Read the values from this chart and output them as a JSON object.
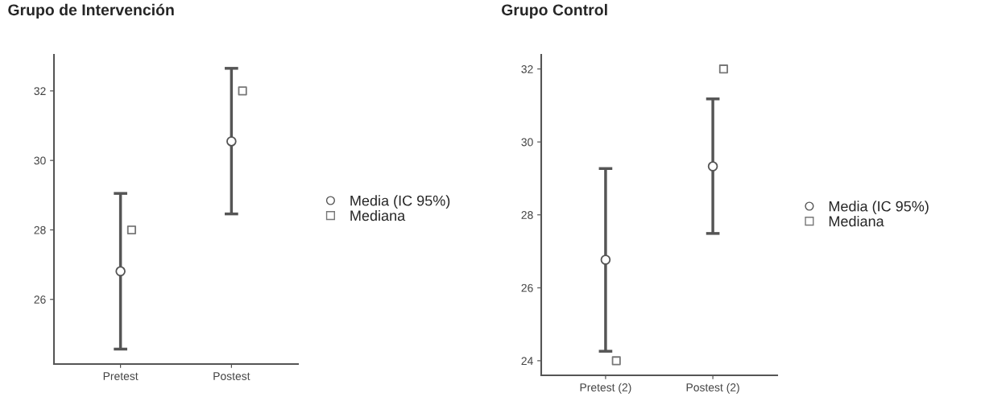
{
  "chart_data": [
    {
      "type": "scatter",
      "title": "Grupo de Intervención",
      "categories": [
        "Pretest",
        "Postest"
      ],
      "ylim": [
        24.14,
        33.04
      ],
      "yticks": [
        26,
        28,
        30,
        32
      ],
      "legend": "right",
      "grid": false,
      "series": [
        {
          "name": "Media (IC 95%)",
          "color": "#555555",
          "marker": "circle",
          "values": [
            26.81,
            30.55
          ],
          "errors": [
            [
              24.57,
              29.05
            ],
            [
              28.46,
              32.65
            ]
          ]
        },
        {
          "name": "Mediana",
          "color": "#777777",
          "marker": "square",
          "values": [
            28,
            32
          ]
        }
      ]
    },
    {
      "type": "scatter",
      "title": "Grupo Control",
      "categories": [
        "Pretest (2)",
        "Postest (2)"
      ],
      "ylim": [
        23.6,
        32.39
      ],
      "yticks": [
        24,
        26,
        28,
        30,
        32
      ],
      "legend": "right",
      "grid": false,
      "series": [
        {
          "name": "Media (IC 95%)",
          "color": "#555555",
          "marker": "circle",
          "values": [
            26.77,
            29.33
          ],
          "errors": [
            [
              24.26,
              29.27
            ],
            [
              27.49,
              31.18
            ]
          ]
        },
        {
          "name": "Mediana",
          "color": "#777777",
          "marker": "square",
          "values": [
            24,
            32
          ]
        }
      ]
    }
  ]
}
